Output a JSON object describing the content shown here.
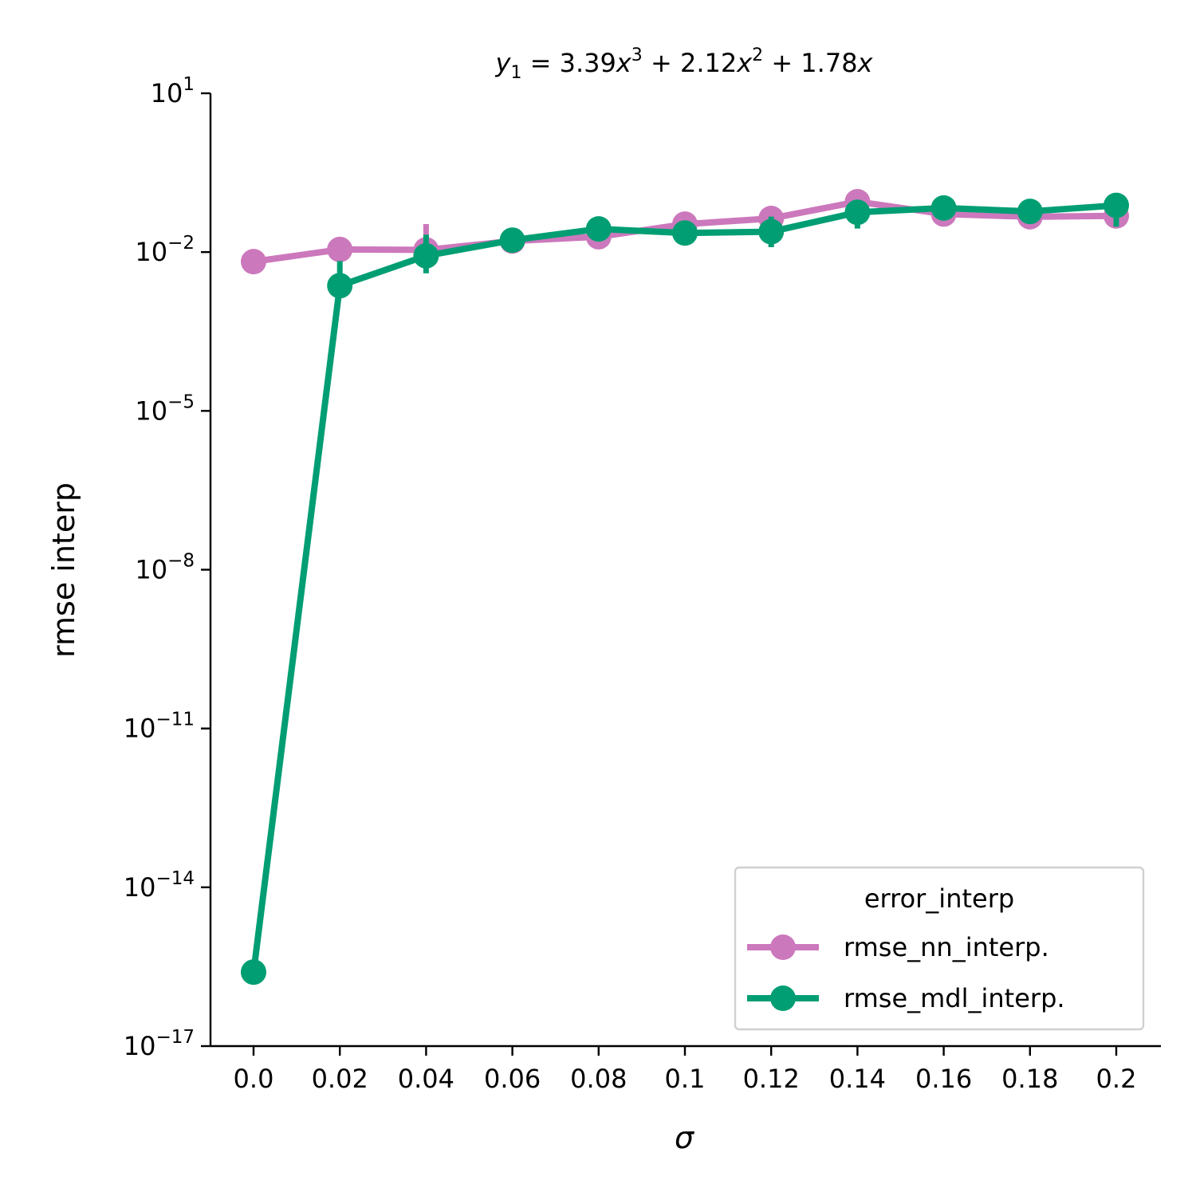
{
  "chart_data": {
    "type": "line",
    "title": {
      "y_sym": "y",
      "y_sub": "1",
      "eq_part1": " = 3.39",
      "x_sym_1": "x",
      "exp_1": "3",
      "eq_part2": " + 2.12",
      "x_sym_2": "x",
      "exp_2": "2",
      "eq_part3": " + 1.78",
      "x_sym_3": "x"
    },
    "xlabel": "σ",
    "ylabel": "rmse interp",
    "yscale": "log",
    "ylim": [
      1e-17,
      10
    ],
    "x": [
      "0.0",
      "0.02",
      "0.04",
      "0.06",
      "0.08",
      "0.1",
      "0.12",
      "0.14",
      "0.16",
      "0.18",
      "0.2"
    ],
    "y_ticks": [
      {
        "base": "10",
        "exp": "1",
        "value": 10
      },
      {
        "base": "10",
        "exp": "−2",
        "value": 0.01
      },
      {
        "base": "10",
        "exp": "−5",
        "value": 1e-05
      },
      {
        "base": "10",
        "exp": "−8",
        "value": 1e-08
      },
      {
        "base": "10",
        "exp": "−11",
        "value": 1e-11
      },
      {
        "base": "10",
        "exp": "−14",
        "value": 1e-14
      },
      {
        "base": "10",
        "exp": "−17",
        "value": 1e-17
      }
    ],
    "legend": {
      "title": "error_interp",
      "position": "lower right"
    },
    "grid": false,
    "series": [
      {
        "name": "rmse_nn_interp.",
        "color": "#cc78bc",
        "values": [
          0.0066,
          0.0112,
          0.011,
          0.0162,
          0.0195,
          0.0337,
          0.0432,
          0.0895,
          0.0524,
          0.0465,
          0.0483
        ],
        "err_low": [
          0.0047,
          null,
          null,
          null,
          null,
          null,
          null,
          null,
          null,
          null,
          0.0302
        ],
        "err_high": [
          0.0084,
          null,
          0.0339,
          null,
          null,
          null,
          null,
          null,
          null,
          null,
          0.0554
        ]
      },
      {
        "name": "rmse_mdl_interp.",
        "color": "#029e73",
        "values": [
          2.5e-16,
          0.00232,
          0.0085,
          0.0168,
          0.0274,
          0.0229,
          0.0243,
          0.0564,
          0.0681,
          0.0586,
          0.0762
        ],
        "err_low": [
          null,
          0.00141,
          0.00398,
          null,
          null,
          null,
          0.0124,
          0.0278,
          0.0418,
          null,
          0.0302
        ],
        "err_high": [
          null,
          0.00677,
          0.0214,
          null,
          null,
          null,
          0.0469,
          0.0906,
          0.1041,
          null,
          0.0845
        ]
      }
    ]
  }
}
